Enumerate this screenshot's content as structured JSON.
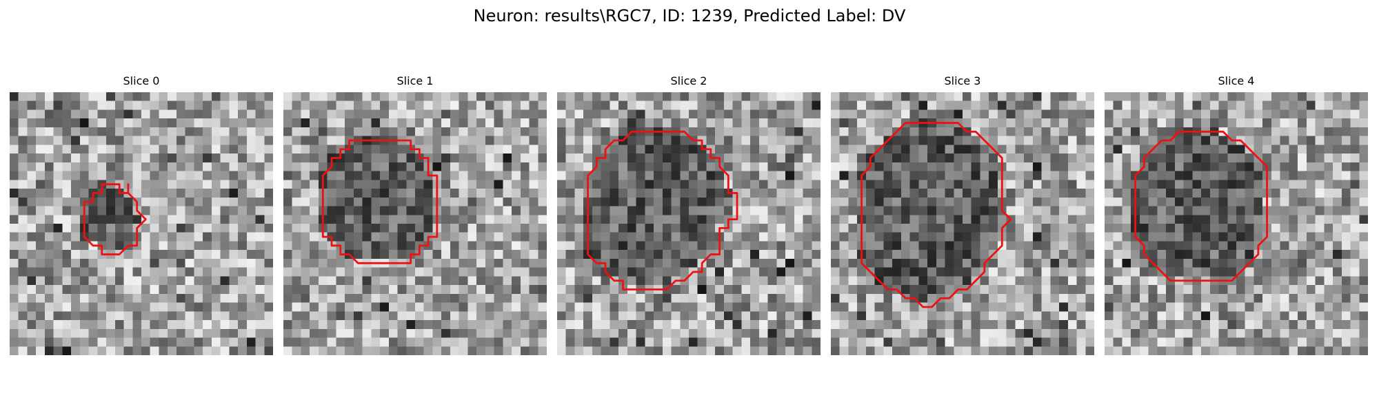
{
  "figure": {
    "title": "Neuron: results\\RGC7, ID: 1239, Predicted Label: DV",
    "contour_color": "#ee1111"
  },
  "slices": [
    {
      "title": "Slice 0",
      "contour": [
        [
          13.5,
          10.5
        ],
        [
          13.5,
          11.5
        ],
        [
          12.5,
          11.5
        ],
        [
          12.5,
          10.5
        ],
        [
          11.5,
          10.5
        ],
        [
          10.5,
          10.5
        ],
        [
          10.5,
          11.5
        ],
        [
          9.5,
          11.5
        ],
        [
          9.5,
          12.5
        ],
        [
          8.5,
          12.5
        ],
        [
          8.5,
          13.5
        ],
        [
          8.5,
          14.5
        ],
        [
          8.5,
          15.5
        ],
        [
          8.5,
          16.5
        ],
        [
          9.5,
          17.5
        ],
        [
          10.5,
          17.5
        ],
        [
          10.5,
          18.5
        ],
        [
          11.5,
          18.5
        ],
        [
          12.5,
          18.5
        ],
        [
          13.5,
          17.5
        ],
        [
          14.5,
          17.5
        ],
        [
          14.5,
          16.5
        ],
        [
          14.5,
          15.5
        ],
        [
          15.5,
          14.5
        ],
        [
          14.5,
          13.5
        ],
        [
          14.5,
          12.5
        ],
        [
          13.5,
          11.5
        ]
      ]
    },
    {
      "title": "Slice 1",
      "contour": [
        [
          8.5,
          5.5
        ],
        [
          14.5,
          5.5
        ],
        [
          14.5,
          6.5
        ],
        [
          15.5,
          6.5
        ],
        [
          15.5,
          7.5
        ],
        [
          16.5,
          7.5
        ],
        [
          16.5,
          8.5
        ],
        [
          16.5,
          9.5
        ],
        [
          17.5,
          9.5
        ],
        [
          17.5,
          10.5
        ],
        [
          17.5,
          11.5
        ],
        [
          17.5,
          12.5
        ],
        [
          17.5,
          13.5
        ],
        [
          17.5,
          14.5
        ],
        [
          17.5,
          15.5
        ],
        [
          17.5,
          16.5
        ],
        [
          16.5,
          16.5
        ],
        [
          16.5,
          17.5
        ],
        [
          15.5,
          17.5
        ],
        [
          15.5,
          18.5
        ],
        [
          14.5,
          18.5
        ],
        [
          14.5,
          19.5
        ],
        [
          13.5,
          19.5
        ],
        [
          8.5,
          19.5
        ],
        [
          7.5,
          18.5
        ],
        [
          6.5,
          18.5
        ],
        [
          6.5,
          17.5
        ],
        [
          5.5,
          17.5
        ],
        [
          5.5,
          16.5
        ],
        [
          4.5,
          16.5
        ],
        [
          4.5,
          15.5
        ],
        [
          4.5,
          14.5
        ],
        [
          4.5,
          13.5
        ],
        [
          4.5,
          12.5
        ],
        [
          4.5,
          11.5
        ],
        [
          4.5,
          10.5
        ],
        [
          4.5,
          9.5
        ],
        [
          5.5,
          8.5
        ],
        [
          5.5,
          7.5
        ],
        [
          6.5,
          7.5
        ],
        [
          6.5,
          6.5
        ],
        [
          7.5,
          6.5
        ],
        [
          7.5,
          5.5
        ]
      ]
    },
    {
      "title": "Slice 2",
      "contour": [
        [
          7.5,
          5.5
        ],
        [
          8.5,
          4.5
        ],
        [
          14.5,
          4.5
        ],
        [
          15.5,
          5.5
        ],
        [
          16.5,
          5.5
        ],
        [
          16.5,
          6.5
        ],
        [
          17.5,
          6.5
        ],
        [
          17.5,
          7.5
        ],
        [
          18.5,
          7.5
        ],
        [
          18.5,
          8.5
        ],
        [
          19.5,
          9.5
        ],
        [
          19.5,
          10.5
        ],
        [
          19.5,
          11.5
        ],
        [
          20.5,
          11.5
        ],
        [
          20.5,
          12.5
        ],
        [
          20.5,
          13.5
        ],
        [
          20.5,
          14.5
        ],
        [
          19.5,
          14.5
        ],
        [
          19.5,
          15.5
        ],
        [
          18.5,
          15.5
        ],
        [
          18.5,
          16.5
        ],
        [
          18.5,
          17.5
        ],
        [
          18.5,
          18.5
        ],
        [
          17.5,
          18.5
        ],
        [
          16.5,
          19.5
        ],
        [
          16.5,
          20.5
        ],
        [
          15.5,
          20.5
        ],
        [
          14.5,
          21.5
        ],
        [
          13.5,
          21.5
        ],
        [
          12.5,
          22.5
        ],
        [
          7.5,
          22.5
        ],
        [
          7.5,
          21.5
        ],
        [
          6.5,
          21.5
        ],
        [
          5.5,
          20.5
        ],
        [
          5.5,
          19.5
        ],
        [
          4.5,
          19.5
        ],
        [
          3.5,
          18.5
        ],
        [
          3.5,
          17.5
        ],
        [
          3.5,
          16.5
        ],
        [
          3.5,
          15.5
        ],
        [
          3.5,
          14.5
        ],
        [
          3.5,
          13.5
        ],
        [
          3.5,
          12.5
        ],
        [
          3.5,
          11.5
        ],
        [
          3.5,
          10.5
        ],
        [
          3.5,
          9.5
        ],
        [
          4.5,
          8.5
        ],
        [
          4.5,
          7.5
        ],
        [
          5.5,
          7.5
        ],
        [
          5.5,
          6.5
        ],
        [
          6.5,
          5.5
        ]
      ]
    },
    {
      "title": "Slice 3",
      "contour": [
        [
          7.5,
          4.5
        ],
        [
          8.5,
          3.5
        ],
        [
          14.5,
          3.5
        ],
        [
          15.5,
          4.5
        ],
        [
          16.5,
          4.5
        ],
        [
          17.5,
          5.5
        ],
        [
          18.5,
          6.5
        ],
        [
          19.5,
          7.5
        ],
        [
          19.5,
          8.5
        ],
        [
          19.5,
          9.5
        ],
        [
          19.5,
          10.5
        ],
        [
          19.5,
          11.5
        ],
        [
          19.5,
          12.5
        ],
        [
          19.5,
          13.5
        ],
        [
          20.5,
          14.5
        ],
        [
          19.5,
          15.5
        ],
        [
          19.5,
          16.5
        ],
        [
          19.5,
          17.5
        ],
        [
          18.5,
          18.5
        ],
        [
          17.5,
          19.5
        ],
        [
          17.5,
          20.5
        ],
        [
          16.5,
          21.5
        ],
        [
          15.5,
          22.5
        ],
        [
          14.5,
          22.5
        ],
        [
          13.5,
          23.5
        ],
        [
          12.5,
          23.5
        ],
        [
          11.5,
          24.5
        ],
        [
          10.5,
          24.5
        ],
        [
          9.5,
          23.5
        ],
        [
          8.5,
          23.5
        ],
        [
          7.5,
          22.5
        ],
        [
          6.5,
          22.5
        ],
        [
          5.5,
          21.5
        ],
        [
          4.5,
          20.5
        ],
        [
          3.5,
          19.5
        ],
        [
          3.5,
          18.5
        ],
        [
          3.5,
          17.5
        ],
        [
          3.5,
          16.5
        ],
        [
          3.5,
          15.5
        ],
        [
          3.5,
          14.5
        ],
        [
          3.5,
          13.5
        ],
        [
          3.5,
          12.5
        ],
        [
          3.5,
          11.5
        ],
        [
          3.5,
          10.5
        ],
        [
          3.5,
          9.5
        ],
        [
          4.5,
          8.5
        ],
        [
          4.5,
          7.5
        ],
        [
          5.5,
          6.5
        ],
        [
          6.5,
          5.5
        ]
      ]
    },
    {
      "title": "Slice 4",
      "contour": [
        [
          10.5,
          4.5
        ],
        [
          13.5,
          4.5
        ],
        [
          14.5,
          5.5
        ],
        [
          15.5,
          5.5
        ],
        [
          16.5,
          6.5
        ],
        [
          17.5,
          7.5
        ],
        [
          18.5,
          8.5
        ],
        [
          18.5,
          9.5
        ],
        [
          18.5,
          10.5
        ],
        [
          18.5,
          11.5
        ],
        [
          18.5,
          12.5
        ],
        [
          18.5,
          13.5
        ],
        [
          18.5,
          14.5
        ],
        [
          18.5,
          15.5
        ],
        [
          18.5,
          16.5
        ],
        [
          17.5,
          17.5
        ],
        [
          17.5,
          18.5
        ],
        [
          16.5,
          19.5
        ],
        [
          15.5,
          20.5
        ],
        [
          14.5,
          21.5
        ],
        [
          7.5,
          21.5
        ],
        [
          6.5,
          20.5
        ],
        [
          5.5,
          19.5
        ],
        [
          4.5,
          18.5
        ],
        [
          4.5,
          17.5
        ],
        [
          3.5,
          16.5
        ],
        [
          3.5,
          15.5
        ],
        [
          3.5,
          14.5
        ],
        [
          3.5,
          13.5
        ],
        [
          3.5,
          12.5
        ],
        [
          3.5,
          11.5
        ],
        [
          3.5,
          10.5
        ],
        [
          3.5,
          9.5
        ],
        [
          4.5,
          8.5
        ],
        [
          4.5,
          7.5
        ],
        [
          5.5,
          6.5
        ],
        [
          6.5,
          5.5
        ],
        [
          7.5,
          5.5
        ],
        [
          8.5,
          4.5
        ],
        [
          9.5,
          4.5
        ]
      ]
    }
  ]
}
